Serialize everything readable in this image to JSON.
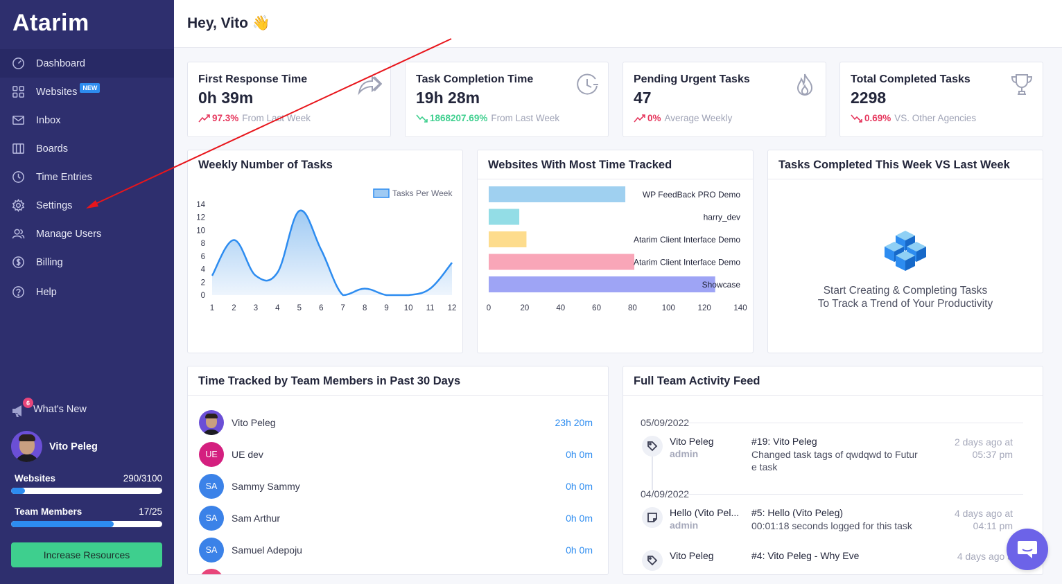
{
  "sidebar": {
    "logo": "Atarim",
    "nav": [
      {
        "label": "Dashboard",
        "icon": "dashboard-icon"
      },
      {
        "label": "Websites",
        "icon": "websites-grid-icon",
        "badge": "NEW"
      },
      {
        "label": "Inbox",
        "icon": "inbox-icon"
      },
      {
        "label": "Boards",
        "icon": "boards-icon"
      },
      {
        "label": "Time Entries",
        "icon": "clock-icon"
      },
      {
        "label": "Settings",
        "icon": "gear-icon"
      },
      {
        "label": "Manage Users",
        "icon": "users-icon"
      },
      {
        "label": "Billing",
        "icon": "dollar-icon"
      },
      {
        "label": "Help",
        "icon": "help-icon"
      }
    ],
    "whats_new": {
      "label": "What's New",
      "count": "6"
    },
    "user": {
      "name": "Vito Peleg"
    },
    "websites_meter": {
      "label": "Websites",
      "value": "290/3100",
      "fraction": 0.094
    },
    "members_meter": {
      "label": "Team Members",
      "value": "17/25",
      "fraction": 0.68
    },
    "increase_button": "Increase Resources"
  },
  "header": {
    "greeting": "Hey, Vito",
    "emoji": "👋"
  },
  "stats": [
    {
      "title": "First Response Time",
      "value": "0h 39m",
      "pct": "97.3%",
      "trend": "up",
      "note": "From Last Week",
      "icon": "forward-arrow-icon"
    },
    {
      "title": "Task Completion Time",
      "value": "19h 28m",
      "pct": "1868207.69%",
      "trend": "down",
      "note": "From Last Week",
      "icon": "clock-history-icon"
    },
    {
      "title": "Pending Urgent Tasks",
      "value": "47",
      "pct": "0%",
      "trend": "up",
      "note": "Average Weekly",
      "icon": "flame-icon"
    },
    {
      "title": "Total Completed Tasks",
      "value": "2298",
      "pct": "0.69%",
      "trend": "up",
      "note": "VS. Other Agencies",
      "icon": "trophy-icon"
    }
  ],
  "panels": {
    "weekly_title": "Weekly Number of Tasks",
    "websites_title": "Websites With Most Time Tracked",
    "compare_title": "Tasks Completed This Week VS Last Week",
    "compare_empty_line1": "Start Creating & Completing Tasks",
    "compare_empty_line2": "To Track a Trend of Your Productivity",
    "team_title": "Time Tracked by Team Members in Past 30 Days",
    "feed_title": "Full Team Activity Feed"
  },
  "chart_data": [
    {
      "type": "area",
      "legend": "Tasks Per Week",
      "x": [
        1,
        2,
        3,
        4,
        5,
        6,
        7,
        8,
        9,
        10,
        11,
        12
      ],
      "series": [
        {
          "name": "Tasks Per Week",
          "values": [
            3,
            8.5,
            3,
            3.5,
            13,
            7,
            0,
            1,
            0,
            0,
            1,
            5
          ]
        }
      ],
      "ylim": [
        0,
        14
      ],
      "yticks": [
        0,
        2,
        4,
        6,
        8,
        10,
        12,
        14
      ],
      "color": "#2d8cf0"
    },
    {
      "type": "bar",
      "orientation": "horizontal",
      "categories": [
        "WP FeedBack PRO Demo",
        "harry_dev",
        "Atarim Client Interface Demo",
        "Atarim Client Interface Demo",
        "Showcase"
      ],
      "values": [
        76,
        17,
        21,
        81,
        126
      ],
      "colors": [
        "#9fd0f0",
        "#93dde6",
        "#fddc8d",
        "#f9a6b8",
        "#9ea4f5"
      ],
      "xlim": [
        0,
        140
      ],
      "xticks": [
        0,
        20,
        40,
        60,
        80,
        100,
        120,
        140
      ]
    }
  ],
  "team": [
    {
      "name": "Vito Peleg",
      "initials": "",
      "color": "#6b4fd6",
      "photo": true,
      "time": "23h 20m"
    },
    {
      "name": "UE dev",
      "initials": "UE",
      "color": "#d41f7f",
      "photo": false,
      "time": "0h 0m"
    },
    {
      "name": "Sammy Sammy",
      "initials": "SA",
      "color": "#3b82e8",
      "photo": false,
      "time": "0h 0m"
    },
    {
      "name": "Sam Arthur",
      "initials": "SA",
      "color": "#3b82e8",
      "photo": false,
      "time": "0h 0m"
    },
    {
      "name": "Samuel Adepoju",
      "initials": "SA",
      "color": "#3b82e8",
      "photo": false,
      "time": "0h 0m"
    }
  ],
  "feed": [
    {
      "date": "05/09/2022",
      "who": "Vito Peleg",
      "role": "admin",
      "task": "#19: Vito Peleg",
      "desc": "Changed task tags of qwdqwd to Futur e task",
      "when1": "2 days ago at",
      "when2": "05:37 pm",
      "icon": "tag-icon"
    },
    {
      "date": "04/09/2022",
      "who": "Hello (Vito Pel...",
      "role": "admin",
      "task": "#5: Hello (Vito Peleg)",
      "desc": "00:01:18 seconds logged for this task",
      "when1": "4 days ago at",
      "when2": "04:11 pm",
      "icon": "note-icon"
    },
    {
      "date": "",
      "who": "Vito Peleg",
      "role": "",
      "task": "#4: Vito Peleg - Why Eve",
      "desc": "",
      "when1": "4 days ago a",
      "when2": "",
      "icon": "tag-icon"
    }
  ]
}
